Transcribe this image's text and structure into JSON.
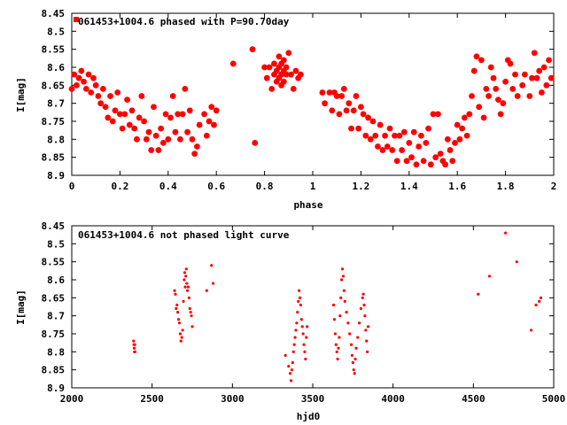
{
  "chart_data": [
    {
      "type": "scatter",
      "title": "",
      "legend": "061453+1004.6 phased with P=90.70day",
      "legend_position": "top-left",
      "xlabel": "phase",
      "ylabel": "I[mag]",
      "xlim": [
        0,
        2
      ],
      "ylim": [
        8.45,
        8.9
      ],
      "y_inverted": true,
      "grid": false,
      "marker": "filled-circle-large",
      "color": "#ff0000",
      "x_ticks": [
        0,
        0.2,
        0.4,
        0.6,
        0.8,
        1,
        1.2,
        1.4,
        1.6,
        1.8,
        2
      ],
      "x_tick_labels": [
        "0",
        "0.2",
        "0.4",
        "0.6",
        "0.8",
        "1",
        "1.2",
        "1.4",
        "1.6",
        "1.8",
        "2"
      ],
      "y_ticks": [
        8.45,
        8.5,
        8.55,
        8.6,
        8.65,
        8.7,
        8.75,
        8.8,
        8.85,
        8.9
      ],
      "y_tick_labels": [
        "8.45",
        "8.5",
        "8.55",
        "8.6",
        "8.65",
        "8.7",
        "8.75",
        "8.8",
        "8.85",
        "8.9"
      ],
      "points": [
        [
          0.0,
          8.66
        ],
        [
          0.01,
          8.62
        ],
        [
          0.02,
          8.65
        ],
        [
          0.03,
          8.63
        ],
        [
          0.04,
          8.61
        ],
        [
          0.05,
          8.64
        ],
        [
          0.06,
          8.66
        ],
        [
          0.07,
          8.62
        ],
        [
          0.08,
          8.67
        ],
        [
          0.09,
          8.63
        ],
        [
          0.1,
          8.65
        ],
        [
          0.11,
          8.68
        ],
        [
          0.12,
          8.7
        ],
        [
          0.13,
          8.66
        ],
        [
          0.14,
          8.71
        ],
        [
          0.15,
          8.74
        ],
        [
          0.16,
          8.68
        ],
        [
          0.17,
          8.75
        ],
        [
          0.18,
          8.72
        ],
        [
          0.19,
          8.67
        ],
        [
          0.2,
          8.73
        ],
        [
          0.21,
          8.77
        ],
        [
          0.22,
          8.73
        ],
        [
          0.23,
          8.69
        ],
        [
          0.24,
          8.76
        ],
        [
          0.25,
          8.72
        ],
        [
          0.26,
          8.77
        ],
        [
          0.27,
          8.8
        ],
        [
          0.28,
          8.74
        ],
        [
          0.29,
          8.68
        ],
        [
          0.3,
          8.75
        ],
        [
          0.31,
          8.8
        ],
        [
          0.32,
          8.78
        ],
        [
          0.33,
          8.83
        ],
        [
          0.34,
          8.71
        ],
        [
          0.35,
          8.79
        ],
        [
          0.36,
          8.83
        ],
        [
          0.37,
          8.77
        ],
        [
          0.38,
          8.81
        ],
        [
          0.39,
          8.73
        ],
        [
          0.4,
          8.8
        ],
        [
          0.41,
          8.74
        ],
        [
          0.42,
          8.68
        ],
        [
          0.43,
          8.78
        ],
        [
          0.44,
          8.73
        ],
        [
          0.45,
          8.8
        ],
        [
          0.46,
          8.73
        ],
        [
          0.47,
          8.66
        ],
        [
          0.48,
          8.78
        ],
        [
          0.49,
          8.72
        ],
        [
          0.5,
          8.8
        ],
        [
          0.51,
          8.84
        ],
        [
          0.52,
          8.82
        ],
        [
          0.53,
          8.76
        ],
        [
          0.55,
          8.73
        ],
        [
          0.56,
          8.79
        ],
        [
          0.57,
          8.75
        ],
        [
          0.58,
          8.71
        ],
        [
          0.59,
          8.76
        ],
        [
          0.6,
          8.72
        ],
        [
          0.67,
          8.59
        ],
        [
          0.75,
          8.55
        ],
        [
          0.76,
          8.81
        ],
        [
          0.8,
          8.6
        ],
        [
          0.81,
          8.63
        ],
        [
          0.82,
          8.6
        ],
        [
          0.83,
          8.66
        ],
        [
          0.84,
          8.62
        ],
        [
          0.84,
          8.59
        ],
        [
          0.85,
          8.64
        ],
        [
          0.85,
          8.61
        ],
        [
          0.86,
          8.63
        ],
        [
          0.86,
          8.6
        ],
        [
          0.86,
          8.57
        ],
        [
          0.87,
          8.65
        ],
        [
          0.87,
          8.62
        ],
        [
          0.87,
          8.59
        ],
        [
          0.88,
          8.61
        ],
        [
          0.88,
          8.64
        ],
        [
          0.88,
          8.58
        ],
        [
          0.89,
          8.62
        ],
        [
          0.89,
          8.6
        ],
        [
          0.9,
          8.56
        ],
        [
          0.91,
          8.62
        ],
        [
          0.92,
          8.66
        ],
        [
          0.93,
          8.61
        ],
        [
          0.94,
          8.63
        ],
        [
          0.95,
          8.62
        ],
        [
          1.04,
          8.67
        ],
        [
          1.05,
          8.7
        ],
        [
          1.07,
          8.67
        ],
        [
          1.08,
          8.72
        ],
        [
          1.09,
          8.67
        ],
        [
          1.1,
          8.68
        ],
        [
          1.11,
          8.73
        ],
        [
          1.12,
          8.68
        ],
        [
          1.13,
          8.66
        ],
        [
          1.14,
          8.72
        ],
        [
          1.15,
          8.7
        ],
        [
          1.16,
          8.77
        ],
        [
          1.17,
          8.72
        ],
        [
          1.18,
          8.68
        ],
        [
          1.19,
          8.77
        ],
        [
          1.2,
          8.71
        ],
        [
          1.21,
          8.73
        ],
        [
          1.22,
          8.79
        ],
        [
          1.23,
          8.74
        ],
        [
          1.24,
          8.8
        ],
        [
          1.25,
          8.75
        ],
        [
          1.26,
          8.79
        ],
        [
          1.27,
          8.82
        ],
        [
          1.28,
          8.76
        ],
        [
          1.29,
          8.83
        ],
        [
          1.3,
          8.79
        ],
        [
          1.31,
          8.82
        ],
        [
          1.32,
          8.77
        ],
        [
          1.33,
          8.83
        ],
        [
          1.34,
          8.79
        ],
        [
          1.35,
          8.86
        ],
        [
          1.36,
          8.79
        ],
        [
          1.37,
          8.83
        ],
        [
          1.38,
          8.78
        ],
        [
          1.39,
          8.86
        ],
        [
          1.4,
          8.81
        ],
        [
          1.41,
          8.85
        ],
        [
          1.42,
          8.78
        ],
        [
          1.43,
          8.87
        ],
        [
          1.44,
          8.82
        ],
        [
          1.45,
          8.79
        ],
        [
          1.46,
          8.86
        ],
        [
          1.47,
          8.81
        ],
        [
          1.48,
          8.77
        ],
        [
          1.49,
          8.87
        ],
        [
          1.5,
          8.73
        ],
        [
          1.51,
          8.85
        ],
        [
          1.52,
          8.73
        ],
        [
          1.53,
          8.84
        ],
        [
          1.54,
          8.86
        ],
        [
          1.55,
          8.87
        ],
        [
          1.56,
          8.8
        ],
        [
          1.57,
          8.83
        ],
        [
          1.58,
          8.86
        ],
        [
          1.59,
          8.81
        ],
        [
          1.6,
          8.76
        ],
        [
          1.61,
          8.8
        ],
        [
          1.62,
          8.77
        ],
        [
          1.63,
          8.74
        ],
        [
          1.64,
          8.79
        ],
        [
          1.65,
          8.73
        ],
        [
          1.66,
          8.68
        ],
        [
          1.67,
          8.61
        ],
        [
          1.68,
          8.57
        ],
        [
          1.69,
          8.71
        ],
        [
          1.7,
          8.58
        ],
        [
          1.71,
          8.74
        ],
        [
          1.72,
          8.66
        ],
        [
          1.73,
          8.68
        ],
        [
          1.74,
          8.6
        ],
        [
          1.75,
          8.63
        ],
        [
          1.76,
          8.66
        ],
        [
          1.77,
          8.69
        ],
        [
          1.78,
          8.73
        ],
        [
          1.79,
          8.7
        ],
        [
          1.8,
          8.64
        ],
        [
          1.81,
          8.58
        ],
        [
          1.82,
          8.59
        ],
        [
          1.83,
          8.66
        ],
        [
          1.84,
          8.62
        ],
        [
          1.85,
          8.68
        ],
        [
          1.87,
          8.65
        ],
        [
          1.88,
          8.62
        ],
        [
          1.9,
          8.68
        ],
        [
          1.91,
          8.63
        ],
        [
          1.92,
          8.56
        ],
        [
          1.93,
          8.63
        ],
        [
          1.94,
          8.61
        ],
        [
          1.95,
          8.67
        ],
        [
          1.96,
          8.6
        ],
        [
          1.97,
          8.65
        ],
        [
          1.98,
          8.58
        ],
        [
          1.99,
          8.63
        ]
      ]
    },
    {
      "type": "scatter",
      "title": "",
      "legend": "061453+1004.6 not phased light curve",
      "legend_position": "top-left",
      "xlabel": "hjd0",
      "ylabel": "I[mag]",
      "xlim": [
        2000,
        5000
      ],
      "ylim": [
        8.45,
        8.9
      ],
      "y_inverted": true,
      "grid": false,
      "marker": "small-dot",
      "color": "#ff0000",
      "x_ticks": [
        2000,
        2500,
        3000,
        3500,
        4000,
        4500,
        5000
      ],
      "x_tick_labels": [
        "2000",
        "2500",
        "3000",
        "3500",
        "4000",
        "4500",
        "5000"
      ],
      "y_ticks": [
        8.45,
        8.5,
        8.55,
        8.6,
        8.65,
        8.7,
        8.75,
        8.8,
        8.85,
        8.9
      ],
      "y_tick_labels": [
        "8.45",
        "8.5",
        "8.55",
        "8.6",
        "8.65",
        "8.7",
        "8.75",
        "8.8",
        "8.85",
        "8.9"
      ],
      "points": [
        [
          2385,
          8.77
        ],
        [
          2387,
          8.78
        ],
        [
          2389,
          8.79
        ],
        [
          2390,
          8.8
        ],
        [
          2392,
          8.78
        ],
        [
          2394,
          8.8
        ],
        [
          2640,
          8.63
        ],
        [
          2645,
          8.64
        ],
        [
          2650,
          8.68
        ],
        [
          2655,
          8.67
        ],
        [
          2660,
          8.69
        ],
        [
          2665,
          8.71
        ],
        [
          2670,
          8.72
        ],
        [
          2675,
          8.75
        ],
        [
          2680,
          8.77
        ],
        [
          2685,
          8.76
        ],
        [
          2690,
          8.74
        ],
        [
          2695,
          8.66
        ],
        [
          2700,
          8.6
        ],
        [
          2703,
          8.58
        ],
        [
          2706,
          8.62
        ],
        [
          2710,
          8.59
        ],
        [
          2713,
          8.57
        ],
        [
          2716,
          8.61
        ],
        [
          2720,
          8.63
        ],
        [
          2725,
          8.62
        ],
        [
          2730,
          8.65
        ],
        [
          2735,
          8.68
        ],
        [
          2740,
          8.69
        ],
        [
          2745,
          8.7
        ],
        [
          2750,
          8.73
        ],
        [
          2840,
          8.63
        ],
        [
          2870,
          8.56
        ],
        [
          2880,
          8.61
        ],
        [
          3330,
          8.81
        ],
        [
          3350,
          8.84
        ],
        [
          3360,
          8.86
        ],
        [
          3365,
          8.88
        ],
        [
          3370,
          8.85
        ],
        [
          3375,
          8.83
        ],
        [
          3380,
          8.8
        ],
        [
          3385,
          8.78
        ],
        [
          3390,
          8.76
        ],
        [
          3395,
          8.74
        ],
        [
          3400,
          8.72
        ],
        [
          3405,
          8.69
        ],
        [
          3410,
          8.66
        ],
        [
          3415,
          8.63
        ],
        [
          3420,
          8.65
        ],
        [
          3425,
          8.67
        ],
        [
          3430,
          8.71
        ],
        [
          3435,
          8.73
        ],
        [
          3440,
          8.75
        ],
        [
          3445,
          8.78
        ],
        [
          3450,
          8.8
        ],
        [
          3455,
          8.82
        ],
        [
          3460,
          8.76
        ],
        [
          3465,
          8.73
        ],
        [
          3630,
          8.67
        ],
        [
          3635,
          8.71
        ],
        [
          3640,
          8.75
        ],
        [
          3645,
          8.78
        ],
        [
          3650,
          8.8
        ],
        [
          3655,
          8.82
        ],
        [
          3660,
          8.79
        ],
        [
          3665,
          8.76
        ],
        [
          3670,
          8.7
        ],
        [
          3675,
          8.65
        ],
        [
          3680,
          8.6
        ],
        [
          3685,
          8.57
        ],
        [
          3690,
          8.59
        ],
        [
          3695,
          8.63
        ],
        [
          3700,
          8.66
        ],
        [
          3710,
          8.69
        ],
        [
          3720,
          8.72
        ],
        [
          3730,
          8.75
        ],
        [
          3740,
          8.78
        ],
        [
          3745,
          8.81
        ],
        [
          3750,
          8.83
        ],
        [
          3755,
          8.85
        ],
        [
          3760,
          8.86
        ],
        [
          3765,
          8.82
        ],
        [
          3770,
          8.79
        ],
        [
          3780,
          8.76
        ],
        [
          3790,
          8.72
        ],
        [
          3800,
          8.68
        ],
        [
          3810,
          8.65
        ],
        [
          3815,
          8.64
        ],
        [
          3820,
          8.67
        ],
        [
          3825,
          8.7
        ],
        [
          3830,
          8.74
        ],
        [
          3835,
          8.77
        ],
        [
          3840,
          8.8
        ],
        [
          3845,
          8.73
        ],
        [
          4530,
          8.64
        ],
        [
          4600,
          8.59
        ],
        [
          4700,
          8.47
        ],
        [
          4770,
          8.55
        ],
        [
          4860,
          8.74
        ],
        [
          4890,
          8.67
        ],
        [
          4910,
          8.66
        ],
        [
          4920,
          8.65
        ]
      ]
    }
  ]
}
